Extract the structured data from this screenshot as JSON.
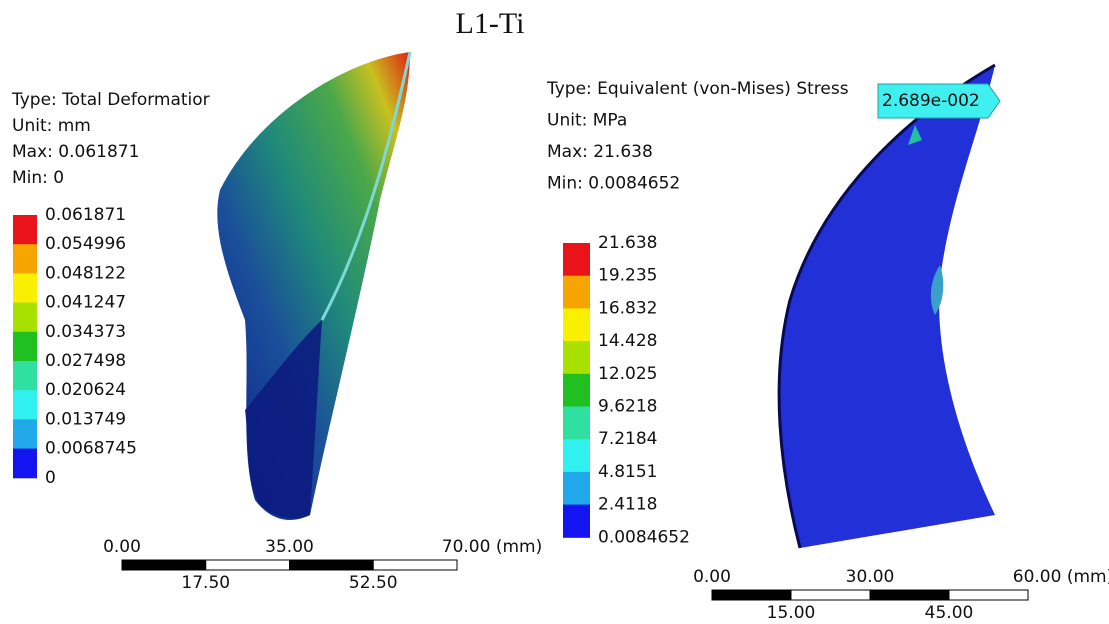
{
  "title": "L1-Ti",
  "panels": [
    {
      "info": [
        "Type: Total Deformatior",
        "Unit: mm",
        "Max: 0.061871",
        "Min: 0"
      ],
      "legend": [
        "0.061871",
        "0.054996",
        "0.048122",
        "0.041247",
        "0.034373",
        "0.027498",
        "0.020624",
        "0.013749",
        "0.0068745",
        "0"
      ],
      "scale": {
        "top": [
          "0.00",
          "35.00",
          "70.00 (mm)"
        ],
        "bottom": [
          "17.50",
          "52.50"
        ]
      }
    },
    {
      "info": [
        "Type: Equivalent (von-Mises) Stress",
        "Unit: MPa",
        "Max: 21.638",
        "Min: 0.0084652"
      ],
      "probe": "2.689e-002",
      "legend": [
        "21.638",
        "19.235",
        "16.832",
        "14.428",
        "12.025",
        "9.6218",
        "7.2184",
        "4.8151",
        "2.4118",
        "0.0084652"
      ],
      "scale": {
        "top": [
          "0.00",
          "30.00",
          "60.00 (mm)"
        ],
        "bottom": [
          "15.00",
          "45.00"
        ]
      }
    }
  ]
}
